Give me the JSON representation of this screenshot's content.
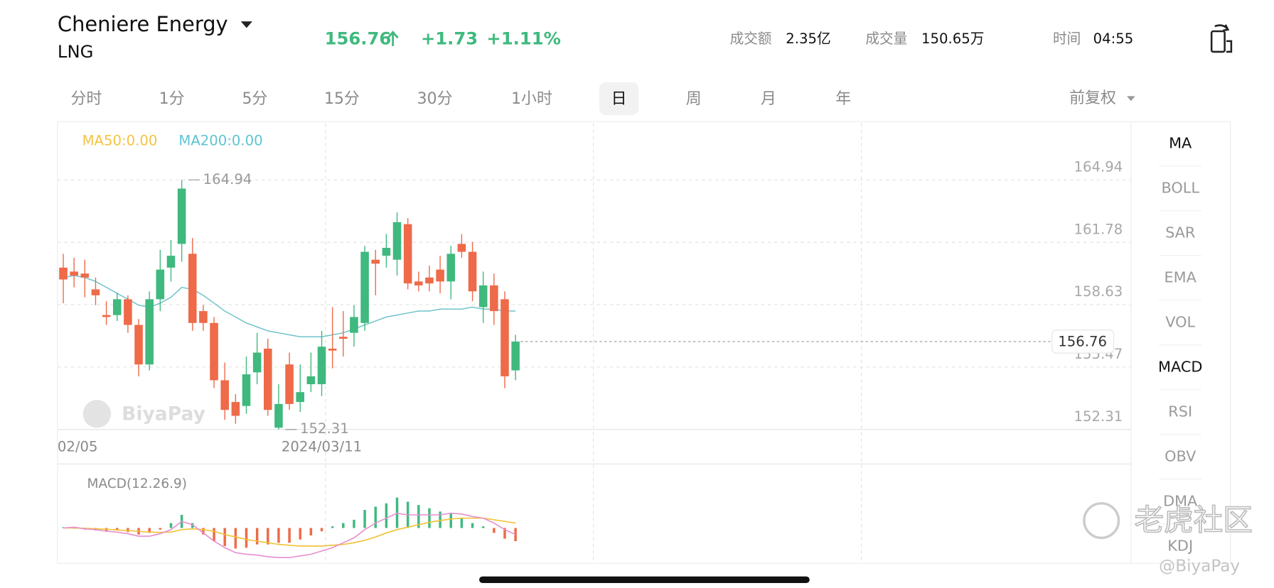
{
  "header": {
    "name": "Cheniere Energy",
    "symbol": "LNG",
    "price": "156.76",
    "change": "+1.73",
    "change_pct": "+1.11%",
    "color": "#3fb97e",
    "stats": [
      {
        "label": "成交额",
        "value": "2.35亿"
      },
      {
        "label": "成交量",
        "value": "150.65万"
      },
      {
        "label": "时间",
        "value": "04:55"
      }
    ]
  },
  "tabs": {
    "items": [
      "分时",
      "1分",
      "5分",
      "15分",
      "30分",
      "1小时",
      "日",
      "周",
      "月",
      "年"
    ],
    "selected": 6,
    "adjust": "前复权"
  },
  "indicators": {
    "items": [
      "MA",
      "BOLL",
      "SAR",
      "EMA",
      "VOL",
      "MACD",
      "RSI",
      "OBV",
      "DMA",
      "KDJ"
    ],
    "active": [
      0,
      5
    ]
  },
  "watermarks": [
    "BiyaPay",
    "老虎社区",
    "@BiyaPay"
  ],
  "chart_data": [
    {
      "type": "candlestick",
      "legend": [
        {
          "text": "MA50:0.00",
          "color": "#f5c342"
        },
        {
          "text": "MA200:0.00",
          "color": "#5fc4d0"
        }
      ],
      "categories": [
        "02/05",
        null,
        null,
        null,
        null,
        null,
        null,
        null,
        null,
        null,
        null,
        null,
        null,
        null,
        null,
        null,
        null,
        null,
        null,
        null,
        null,
        null,
        null,
        null,
        "2024/03/11",
        null,
        null,
        null,
        null,
        null,
        null,
        null,
        null,
        null,
        null,
        null,
        null,
        null,
        null,
        null,
        null,
        null,
        null
      ],
      "open": [
        160.5,
        160.3,
        160.2,
        159.4,
        158.1,
        158.1,
        158.9,
        157.6,
        155.6,
        158.9,
        160.5,
        161.7,
        161.2,
        158.3,
        157.7,
        154.8,
        153.7,
        153.5,
        155.2,
        156.4,
        152.4,
        155.6,
        153.7,
        154.6,
        154.6,
        156.4,
        157.0,
        157.2,
        157.7,
        160.9,
        161.1,
        160.9,
        162.7,
        159.8,
        160.0,
        160.4,
        159.8,
        161.7,
        161.3,
        158.5,
        159.6,
        158.9,
        155.3
      ],
      "high": [
        161.2,
        161.0,
        160.9,
        160.0,
        158.8,
        159.2,
        159.1,
        157.9,
        159.3,
        161.4,
        161.9,
        164.94,
        162.0,
        158.6,
        158.0,
        155.7,
        154.1,
        156.0,
        157.2,
        156.9,
        154.6,
        156.2,
        155.6,
        156.2,
        157.3,
        158.5,
        158.3,
        158.6,
        161.6,
        161.4,
        162.2,
        163.3,
        163.0,
        160.3,
        160.6,
        161.1,
        161.6,
        162.2,
        161.8,
        160.3,
        160.2,
        159.3,
        157.1
      ],
      "low": [
        158.7,
        159.5,
        159.0,
        158.6,
        157.6,
        157.8,
        157.2,
        155.0,
        155.3,
        158.3,
        159.8,
        160.8,
        157.3,
        157.3,
        154.4,
        152.8,
        152.6,
        153.1,
        154.6,
        153.0,
        152.31,
        153.3,
        153.2,
        154.2,
        154.0,
        155.4,
        156.0,
        156.5,
        157.3,
        159.1,
        160.5,
        160.1,
        159.4,
        159.3,
        159.3,
        159.2,
        158.9,
        161.0,
        158.8,
        157.7,
        157.6,
        154.4,
        154.8
      ],
      "close": [
        159.9,
        160.1,
        160.0,
        159.1,
        158.0,
        158.9,
        157.6,
        155.6,
        158.9,
        160.4,
        161.1,
        164.5,
        157.7,
        157.7,
        154.8,
        153.3,
        153.0,
        155.1,
        156.2,
        153.3,
        153.6,
        153.6,
        154.2,
        155.0,
        156.5,
        156.3,
        156.9,
        158.0,
        161.3,
        160.7,
        161.5,
        162.8,
        159.7,
        159.6,
        159.7,
        159.8,
        161.2,
        161.3,
        159.3,
        159.6,
        158.3,
        155.0,
        156.76
      ],
      "ma_line": {
        "color": "#6fc3c9",
        "values": [
          160.0,
          160.1,
          160.0,
          159.8,
          159.5,
          159.2,
          158.9,
          158.6,
          158.5,
          158.7,
          159.0,
          159.5,
          159.4,
          159.1,
          158.7,
          158.3,
          158.0,
          157.7,
          157.5,
          157.3,
          157.2,
          157.1,
          157.0,
          157.0,
          157.0,
          157.1,
          157.2,
          157.4,
          157.6,
          157.8,
          158.0,
          158.1,
          158.2,
          158.3,
          158.3,
          158.4,
          158.4,
          158.4,
          158.5,
          158.4,
          158.4,
          158.3,
          158.3
        ]
      },
      "up_color": "#3fb97e",
      "down_color": "#ee6a48",
      "ylim": [
        152.31,
        167.89
      ],
      "yticks": [
        152.31,
        155.47,
        158.63,
        161.78,
        164.94
      ],
      "grid": true
    },
    {
      "type": "macd",
      "title": "MACD(12.26.9)",
      "histogram": [
        0.05,
        0.0,
        -0.1,
        -0.15,
        -0.2,
        -0.15,
        -0.25,
        -0.4,
        -0.3,
        -0.1,
        0.3,
        0.8,
        0.3,
        -0.4,
        -0.8,
        -1.1,
        -1.25,
        -1.2,
        -1.0,
        -1.0,
        -0.9,
        -0.9,
        -0.7,
        -0.45,
        -0.2,
        0.1,
        0.3,
        0.5,
        1.1,
        1.3,
        1.5,
        1.85,
        1.6,
        1.4,
        1.2,
        1.0,
        0.9,
        0.6,
        0.3,
        0.1,
        -0.3,
        -0.65,
        -0.8
      ],
      "dif": {
        "color": "#e68fd0",
        "values": [
          0.0,
          0.05,
          -0.05,
          -0.1,
          -0.2,
          -0.25,
          -0.35,
          -0.5,
          -0.5,
          -0.35,
          -0.1,
          0.4,
          0.2,
          -0.3,
          -0.8,
          -1.2,
          -1.5,
          -1.6,
          -1.65,
          -1.75,
          -1.8,
          -1.8,
          -1.7,
          -1.6,
          -1.4,
          -1.2,
          -0.9,
          -0.6,
          -0.1,
          0.3,
          0.6,
          0.9,
          0.8,
          0.8,
          0.8,
          0.8,
          0.9,
          0.85,
          0.7,
          0.6,
          0.3,
          -0.1,
          -0.4
        ]
      },
      "dea": {
        "color": "#f1c232",
        "values": [
          0.0,
          0.0,
          -0.02,
          -0.05,
          -0.08,
          -0.12,
          -0.16,
          -0.2,
          -0.25,
          -0.27,
          -0.25,
          -0.1,
          -0.05,
          -0.1,
          -0.2,
          -0.4,
          -0.55,
          -0.7,
          -0.8,
          -0.9,
          -1.0,
          -1.05,
          -1.1,
          -1.1,
          -1.1,
          -1.05,
          -1.0,
          -0.9,
          -0.75,
          -0.55,
          -0.3,
          -0.1,
          0.05,
          0.2,
          0.35,
          0.45,
          0.55,
          0.6,
          0.6,
          0.6,
          0.5,
          0.4,
          0.3
        ]
      },
      "up_color": "#3fb97e",
      "down_color": "#ee6a48",
      "ylim": [
        -2.15,
        3.9
      ]
    }
  ]
}
